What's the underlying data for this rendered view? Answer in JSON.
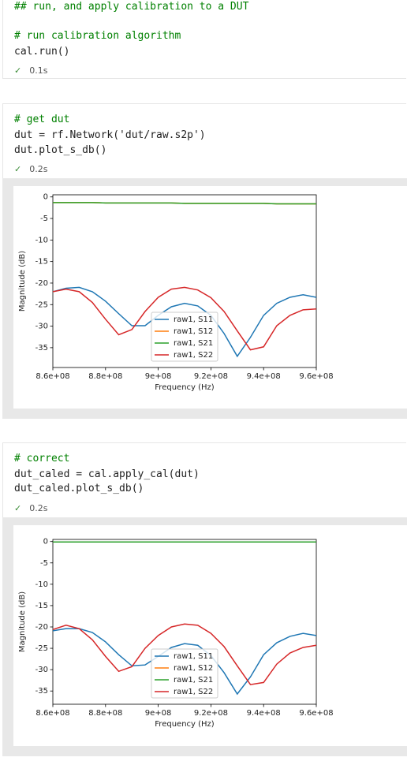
{
  "cells": [
    {
      "code": [
        "## run, and apply calibration to a DUT",
        "# run calibration algorithm",
        "cal.run()"
      ],
      "status": "0.1s"
    },
    {
      "code": [
        "# get dut",
        "dut = rf.Network('dut/raw.s2p')",
        "dut.plot_s_db()"
      ],
      "status": "0.2s"
    },
    {
      "code": [
        "# correct",
        "dut_caled = cal.apply_cal(dut)",
        "dut_caled.plot_s_db()"
      ],
      "status": "0.2s"
    }
  ],
  "chart_data": [
    {
      "type": "line",
      "xlabel": "Frequency (Hz)",
      "ylabel": "Magnitude (dB)",
      "x": [
        860000000,
        865000000,
        870000000,
        875000000,
        880000000,
        885000000,
        890000000,
        895000000,
        900000000,
        905000000,
        910000000,
        915000000,
        920000000,
        925000000,
        930000000,
        935000000,
        940000000,
        945000000,
        950000000,
        955000000,
        960000000
      ],
      "series": [
        {
          "name": "raw1, S11",
          "color": "#1f77b4",
          "values": [
            -22,
            -21.2,
            -21,
            -22,
            -24.2,
            -27.1,
            -29.9,
            -29.9,
            -27.5,
            -25.5,
            -24.7,
            -25.3,
            -27.5,
            -31.7,
            -37,
            -32.6,
            -27.5,
            -24.7,
            -23.3,
            -22.7,
            -23.3
          ]
        },
        {
          "name": "raw1, S12",
          "color": "#ff7f0e",
          "values": [
            -1.3,
            -1.3,
            -1.3,
            -1.3,
            -1.4,
            -1.4,
            -1.4,
            -1.4,
            -1.4,
            -1.4,
            -1.5,
            -1.5,
            -1.5,
            -1.5,
            -1.5,
            -1.5,
            -1.5,
            -1.6,
            -1.6,
            -1.6,
            -1.6
          ]
        },
        {
          "name": "raw1, S21",
          "color": "#2ca02c",
          "values": [
            -1.3,
            -1.3,
            -1.3,
            -1.3,
            -1.4,
            -1.4,
            -1.4,
            -1.4,
            -1.4,
            -1.4,
            -1.5,
            -1.5,
            -1.5,
            -1.5,
            -1.5,
            -1.5,
            -1.5,
            -1.6,
            -1.6,
            -1.6,
            -1.6
          ]
        },
        {
          "name": "raw1, S22",
          "color": "#d62728",
          "values": [
            -22,
            -21.4,
            -22,
            -24.5,
            -28.4,
            -32,
            -30.8,
            -26.6,
            -23.3,
            -21.4,
            -21,
            -21.6,
            -23.4,
            -26.6,
            -31.1,
            -35.5,
            -34.8,
            -29.9,
            -27.5,
            -26.2,
            -26
          ]
        }
      ],
      "xlim": [
        860000000,
        960000000
      ],
      "xticks": [
        {
          "value": 860000000,
          "label": "8.6e+08"
        },
        {
          "value": 880000000,
          "label": "8.8e+08"
        },
        {
          "value": 900000000,
          "label": "9e+08"
        },
        {
          "value": 920000000,
          "label": "9.2e+08"
        },
        {
          "value": 940000000,
          "label": "9.4e+08"
        },
        {
          "value": 960000000,
          "label": "9.6e+08"
        }
      ],
      "ylim": [
        -39.6,
        0.5
      ],
      "yticks": [
        0,
        -5,
        -10,
        -15,
        -20,
        -25,
        -30,
        -35
      ],
      "legend": "lower center"
    },
    {
      "type": "line",
      "xlabel": "Frequency (Hz)",
      "ylabel": "Magnitude (dB)",
      "x": [
        860000000,
        865000000,
        870000000,
        875000000,
        880000000,
        885000000,
        890000000,
        895000000,
        900000000,
        905000000,
        910000000,
        915000000,
        920000000,
        925000000,
        930000000,
        935000000,
        940000000,
        945000000,
        950000000,
        955000000,
        960000000
      ],
      "series": [
        {
          "name": "raw1, S11",
          "color": "#1f77b4",
          "values": [
            -20.9,
            -20.4,
            -20.4,
            -21.3,
            -23.5,
            -26.5,
            -29.1,
            -28.9,
            -26.9,
            -24.8,
            -23.9,
            -24.3,
            -26.7,
            -30.7,
            -35.7,
            -31.7,
            -26.5,
            -23.7,
            -22.2,
            -21.5,
            -22
          ]
        },
        {
          "name": "raw1, S12",
          "color": "#ff7f0e",
          "values": [
            -0.1,
            -0.1,
            -0.1,
            -0.1,
            -0.1,
            -0.1,
            -0.1,
            -0.1,
            -0.1,
            -0.1,
            -0.1,
            -0.1,
            -0.1,
            -0.1,
            -0.1,
            -0.1,
            -0.1,
            -0.1,
            -0.1,
            -0.1,
            -0.1
          ]
        },
        {
          "name": "raw1, S21",
          "color": "#2ca02c",
          "values": [
            -0.1,
            -0.1,
            -0.1,
            -0.1,
            -0.1,
            -0.1,
            -0.1,
            -0.1,
            -0.1,
            -0.1,
            -0.1,
            -0.1,
            -0.1,
            -0.1,
            -0.1,
            -0.1,
            -0.1,
            -0.1,
            -0.1,
            -0.1,
            -0.1
          ]
        },
        {
          "name": "raw1, S22",
          "color": "#d62728",
          "values": [
            -20.6,
            -19.6,
            -20.4,
            -23,
            -26.9,
            -30.4,
            -29.3,
            -25,
            -22,
            -20,
            -19.3,
            -19.6,
            -21.5,
            -24.6,
            -29.1,
            -33.5,
            -33,
            -28.7,
            -26.1,
            -24.8,
            -24.3
          ]
        }
      ],
      "xlim": [
        860000000,
        960000000
      ],
      "xticks": [
        {
          "value": 860000000,
          "label": "8.6e+08"
        },
        {
          "value": 880000000,
          "label": "8.8e+08"
        },
        {
          "value": 900000000,
          "label": "9e+08"
        },
        {
          "value": 920000000,
          "label": "9.2e+08"
        },
        {
          "value": 940000000,
          "label": "9.4e+08"
        },
        {
          "value": 960000000,
          "label": "9.6e+08"
        }
      ],
      "ylim": [
        -38.1,
        0.5
      ],
      "yticks": [
        0,
        -5,
        -10,
        -15,
        -20,
        -25,
        -30,
        -35
      ],
      "legend": "lower center"
    }
  ]
}
